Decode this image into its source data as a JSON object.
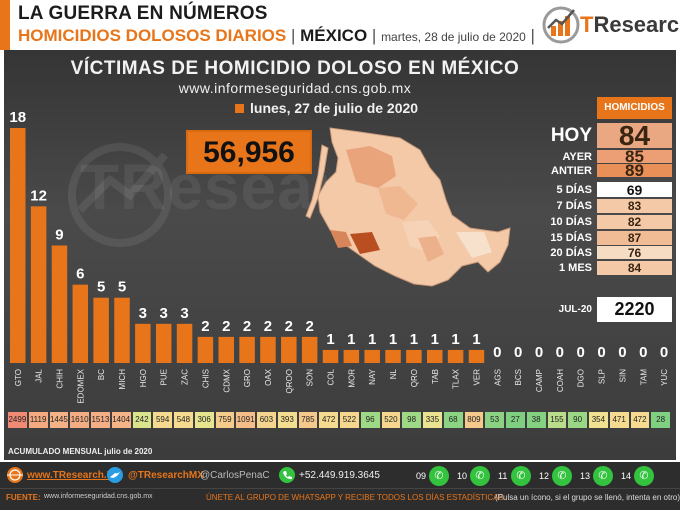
{
  "header": {
    "line1": "LA GUERRA EN NÚMEROS",
    "line2_a": "HOMICIDIOS DOLOSOS DIARIOS",
    "line2_sep1": " | ",
    "line2_b": "MÉXICO",
    "line2_sep2": " | ",
    "line2_date": "martes,  28 de julio de 2020",
    "line2_sep3": " |",
    "logo_t": "T",
    "logo_rest": "Research"
  },
  "chart_data": {
    "type": "bar",
    "title": "VÍCTIMAS DE HOMICIDIO DOLOSO EN MÉXICO",
    "source": "www.informeseguridad.cns.gob.mx",
    "legend": "lunes, 27 de julio de 2020",
    "total": "56,956",
    "categories": [
      "GTO",
      "JAL",
      "CHIH",
      "EDOMEX",
      "BC",
      "MICH",
      "HGO",
      "PUE",
      "ZAC",
      "CHIS",
      "CDMX",
      "GRO",
      "OAX",
      "QROO",
      "SON",
      "COL",
      "MOR",
      "NAY",
      "NL",
      "QRO",
      "TAB",
      "TLAX",
      "VER",
      "AGS",
      "BCS",
      "CAMP",
      "COAH",
      "DGO",
      "SLP",
      "SIN",
      "TAM",
      "YUC"
    ],
    "values": [
      18,
      12,
      9,
      6,
      5,
      5,
      3,
      3,
      3,
      2,
      2,
      2,
      2,
      2,
      2,
      1,
      1,
      1,
      1,
      1,
      1,
      1,
      1,
      0,
      0,
      0,
      0,
      0,
      0,
      0,
      0,
      0
    ],
    "monthly": [
      "2499",
      "1119",
      "1445",
      "1610",
      "1513",
      "1404",
      "242",
      "594",
      "548",
      "306",
      "759",
      "1091",
      "603",
      "393",
      "785",
      "472",
      "522",
      "96",
      "520",
      "98",
      "335",
      "68",
      "809",
      "53",
      "27",
      "38",
      "155",
      "90",
      "354",
      "471",
      "472",
      "28"
    ],
    "monthly_colors": [
      "#f08a74",
      "#f5a981",
      "#f5b287",
      "#f4ac83",
      "#f5ae85",
      "#f5b388",
      "#d9e48c",
      "#f5d98e",
      "#f5da8f",
      "#e6e48f",
      "#f5ca8b",
      "#f5bd88",
      "#f5d58e",
      "#f5dd90",
      "#f5c98b",
      "#f5db8f",
      "#f5d88e",
      "#9ed985",
      "#f5d88e",
      "#a0d985",
      "#eae390",
      "#8cd483",
      "#f5c88b",
      "#8bd383",
      "#7fcf81",
      "#85d182",
      "#b9dd89",
      "#99d784",
      "#f0e290",
      "#f5db8f",
      "#f5da8f",
      "#80d082"
    ],
    "bar_color": "#e8751a",
    "ylim": [
      0,
      19
    ]
  },
  "summary": {
    "header": "HOMICIDIOS",
    "rows": [
      {
        "label": "HOY",
        "value": "84"
      },
      {
        "label": "AYER",
        "value": "85"
      },
      {
        "label": "ANTIER",
        "value": "89"
      },
      {
        "label": "5 DÍAS",
        "value": "69"
      },
      {
        "label": "7 DÍAS",
        "value": "83"
      },
      {
        "label": "10 DÍAS",
        "value": "82"
      },
      {
        "label": "15 DÍAS",
        "value": "87"
      },
      {
        "label": "20 DÍAS",
        "value": "76"
      },
      {
        "label": "1 MES",
        "value": "84"
      }
    ],
    "month_label": "JUL-20",
    "month_value": "2220"
  },
  "monthly_label": "ACUMULADO MENSUAL julio de 2020",
  "watermark": "TResearch",
  "footer": {
    "site": "www.TResearch.Mx",
    "twitter": "@TResearchMX",
    "handle2": "@CarlosPenaC",
    "phone": "+52.449.919.3645",
    "whatsapp_numbers": [
      "09",
      "10",
      "11",
      "12",
      "13",
      "14"
    ],
    "fuente_label": "FUENTE:",
    "fuente": "www.informeseguridad.cns.gob.mx",
    "cta": "ÚNETE  AL GRUPO DE WHATSAPP Y RECIBE  TODOS LOS DÍAS ESTADÍSTICAS",
    "cta_note": "(Pulsa un ícono, si el grupo se llenó, intenta en otro)"
  }
}
